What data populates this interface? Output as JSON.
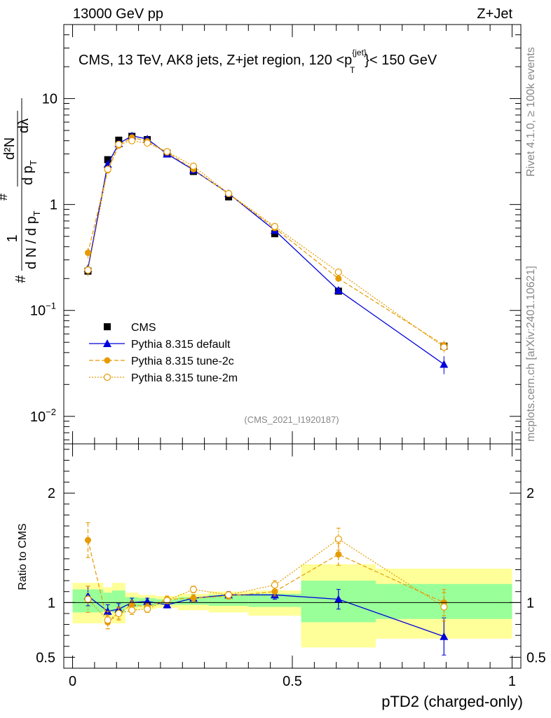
{
  "header": {
    "left": "13000 GeV pp",
    "right": "Z+Jet",
    "title": "CMS, 13 TeV, AK8 jets, Z+jet region, 120 <p",
    "title_sup": "{jet}",
    "title_sub": "T",
    "title_end": "}< 150 GeV",
    "analysis": "(CMS_2021_I1920187)"
  },
  "side_text": {
    "rivet": "Rivet 4.1.0, ≥ 100k events",
    "mcplots": "mcplots.cern.ch [arXiv:2401.10621]"
  },
  "ylabel_main": {
    "hash1": "#",
    "one": "1",
    "dN": "d N / d p",
    "T1": "T",
    "hash2": "#",
    "d2N": "d²N",
    "dpT": "d p",
    "T2": "T",
    "dl": "dλ"
  },
  "ylabel_ratio": "Ratio to CMS",
  "xlabel": "pTD2 (charged-only)",
  "chart_data": {
    "type": "line",
    "x_range": [
      -0.02,
      1.02
    ],
    "main": {
      "yscale": "log",
      "ylim": [
        0.0055,
        50
      ],
      "y_ticks": [
        {
          "v": 0.01,
          "base": "10",
          "exp": "−2"
        },
        {
          "v": 0.1,
          "base": "10",
          "exp": "−1"
        },
        {
          "v": 1,
          "base": "1",
          "exp": ""
        },
        {
          "v": 10,
          "base": "10",
          "exp": ""
        }
      ]
    },
    "ratio": {
      "ylim": [
        0.4,
        2.45
      ],
      "y_ticks": [
        0.5,
        1,
        2
      ],
      "y_tick_labels": [
        "0.5",
        "1",
        "2"
      ],
      "bands": [
        {
          "x0": 0.0,
          "x1": 0.07,
          "y_in": [
            0.91,
            1.12
          ],
          "y_out": [
            0.81,
            1.18
          ]
        },
        {
          "x0": 0.07,
          "x1": 0.09,
          "y_in": [
            0.92,
            1.09
          ],
          "y_out": [
            0.86,
            1.14
          ]
        },
        {
          "x0": 0.09,
          "x1": 0.12,
          "y_in": [
            0.91,
            1.11
          ],
          "y_out": [
            0.81,
            1.18
          ]
        },
        {
          "x0": 0.12,
          "x1": 0.15,
          "y_in": [
            0.96,
            1.05
          ],
          "y_out": [
            0.93,
            1.09
          ]
        },
        {
          "x0": 0.15,
          "x1": 0.19,
          "y_in": [
            0.97,
            1.04
          ],
          "y_out": [
            0.94,
            1.07
          ]
        },
        {
          "x0": 0.19,
          "x1": 0.24,
          "y_in": [
            0.98,
            1.03
          ],
          "y_out": [
            0.95,
            1.06
          ]
        },
        {
          "x0": 0.24,
          "x1": 0.31,
          "y_in": [
            0.98,
            1.05
          ],
          "y_out": [
            0.93,
            1.08
          ]
        },
        {
          "x0": 0.31,
          "x1": 0.4,
          "y_in": [
            0.97,
            1.07
          ],
          "y_out": [
            0.91,
            1.1
          ]
        },
        {
          "x0": 0.4,
          "x1": 0.52,
          "y_in": [
            0.96,
            1.08
          ],
          "y_out": [
            0.88,
            1.11
          ]
        },
        {
          "x0": 0.52,
          "x1": 0.69,
          "y_in": [
            0.82,
            1.2
          ],
          "y_out": [
            0.59,
            1.35
          ]
        },
        {
          "x0": 0.69,
          "x1": 1.0,
          "y_in": [
            0.85,
            1.17
          ],
          "y_out": [
            0.67,
            1.31
          ]
        }
      ]
    },
    "series": [
      {
        "name": "CMS",
        "style": "square",
        "color": "#000000",
        "x": [
          0.035,
          0.08,
          0.105,
          0.135,
          0.17,
          0.215,
          0.275,
          0.355,
          0.46,
          0.605,
          0.845
        ],
        "y": [
          0.235,
          2.65,
          4.05,
          4.4,
          4.1,
          3.05,
          2.05,
          1.18,
          0.53,
          0.152,
          0.046
        ],
        "ratio": [
          1,
          1,
          1,
          1,
          1,
          1,
          1,
          1,
          1,
          1,
          1
        ]
      },
      {
        "name": "Pythia 8.315 default",
        "style": "triangle",
        "color": "#0000dd",
        "x": [
          0.035,
          0.08,
          0.105,
          0.135,
          0.17,
          0.215,
          0.275,
          0.355,
          0.46,
          0.605,
          0.845
        ],
        "y": [
          0.25,
          2.4,
          3.75,
          4.45,
          4.15,
          3.0,
          2.12,
          1.27,
          0.57,
          0.155,
          0.031
        ],
        "yerr": [
          0.02,
          0.12,
          0.12,
          0.12,
          0.1,
          0.08,
          0.05,
          0.03,
          0.02,
          0.012,
          0.006
        ],
        "ratio": [
          1.06,
          0.92,
          0.94,
          1.0,
          1.01,
          0.98,
          1.04,
          1.07,
          1.07,
          1.03,
          0.69
        ],
        "ratio_err": [
          0.09,
          0.06,
          0.05,
          0.04,
          0.03,
          0.03,
          0.03,
          0.03,
          0.04,
          0.09,
          0.17
        ]
      },
      {
        "name": "Pythia 8.315 tune-2c",
        "style": "circle",
        "color": "#e69a00",
        "x": [
          0.035,
          0.08,
          0.105,
          0.135,
          0.17,
          0.215,
          0.275,
          0.355,
          0.46,
          0.605,
          0.845
        ],
        "y": [
          0.35,
          2.1,
          3.6,
          4.3,
          3.95,
          3.1,
          2.15,
          1.26,
          0.6,
          0.2,
          0.047
        ],
        "yerr": [
          0.04,
          0.12,
          0.12,
          0.12,
          0.1,
          0.08,
          0.05,
          0.03,
          0.02,
          0.015,
          0.005
        ],
        "ratio": [
          1.57,
          0.82,
          0.9,
          0.98,
          0.96,
          1.03,
          1.04,
          1.06,
          1.1,
          1.44,
          1.0
        ],
        "ratio_err": [
          0.16,
          0.06,
          0.05,
          0.04,
          0.03,
          0.03,
          0.03,
          0.03,
          0.04,
          0.1,
          0.12
        ]
      },
      {
        "name": "Pythia 8.315 tune-2m",
        "style": "open-circle",
        "color": "#e69a00",
        "x": [
          0.035,
          0.08,
          0.105,
          0.135,
          0.17,
          0.215,
          0.275,
          0.355,
          0.46,
          0.605,
          0.845
        ],
        "y": [
          0.24,
          2.15,
          3.7,
          4.0,
          3.8,
          3.15,
          2.3,
          1.27,
          0.62,
          0.23,
          0.045
        ],
        "yerr": [
          0.03,
          0.12,
          0.12,
          0.12,
          0.1,
          0.08,
          0.05,
          0.03,
          0.02,
          0.015,
          0.005
        ],
        "ratio": [
          1.03,
          0.84,
          0.9,
          0.93,
          0.94,
          1.02,
          1.12,
          1.07,
          1.16,
          1.58,
          0.96
        ],
        "ratio_err": [
          0.12,
          0.08,
          0.06,
          0.04,
          0.03,
          0.03,
          0.03,
          0.03,
          0.04,
          0.1,
          0.13
        ]
      }
    ],
    "x_ticks": [
      0,
      0.5,
      1
    ],
    "x_tick_labels": [
      "0",
      "0.5",
      "1"
    ],
    "legend_position": "lower-left",
    "band_colors": {
      "inner": "#99ff99",
      "outer": "#ffff99"
    }
  }
}
